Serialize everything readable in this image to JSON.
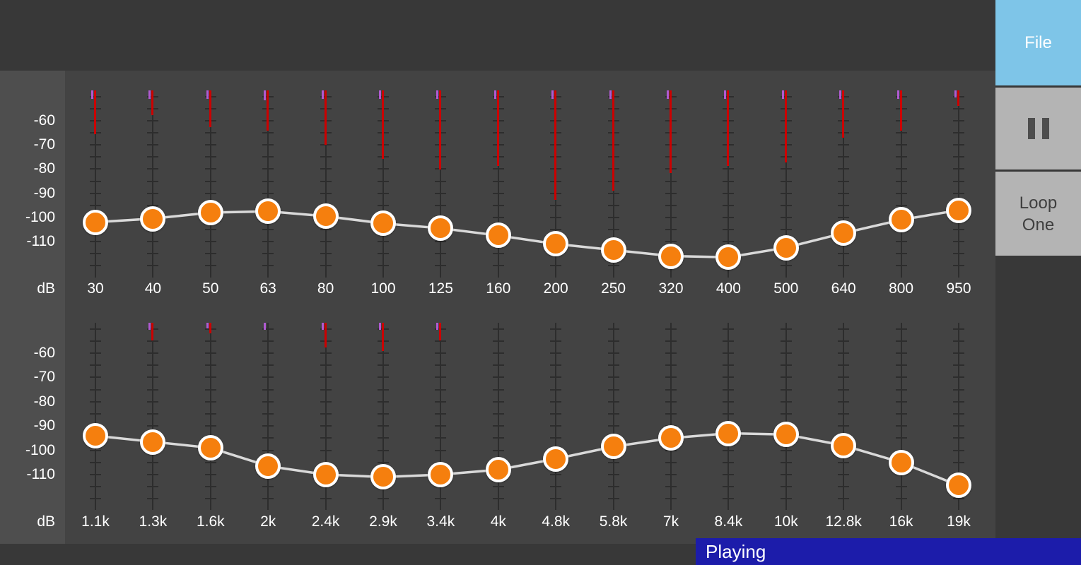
{
  "colors": {
    "background": "#383838",
    "chart_bg": "#434343",
    "left_strip": "#4e4e4e",
    "knob": "#f57f0e",
    "knob_border": "#ffffff",
    "curve": "#d9d9d9",
    "meter_red": "#cc0000",
    "meter_purple": "#b05ad2",
    "file_button_bg": "#7ec5e8",
    "gray_button_bg": "#b4b4b4",
    "playing_bg": "#1c1caa",
    "label_text": "#ffffff"
  },
  "right_panel": {
    "file_button": "File",
    "pause_icon": "pause-icon",
    "loop_button_line1": "Loop",
    "loop_button_line2": "One"
  },
  "status_bar": {
    "text": "Playing"
  },
  "chart_data": {
    "type": "equalizer-sliders",
    "unit": "dB",
    "scale_ticks": [
      -60,
      -70,
      -80,
      -90,
      -100,
      -110
    ],
    "db_axis_visible_range": [
      -60,
      -110
    ],
    "rows": [
      {
        "name": "low-bands",
        "bands": [
          {
            "freq": "30",
            "db": -102,
            "meter": {
              "red": 62,
              "purple": 12
            }
          },
          {
            "freq": "40",
            "db": -100.5,
            "meter": {
              "red": 35,
              "purple": 12
            }
          },
          {
            "freq": "50",
            "db": -98,
            "meter": {
              "red": 52,
              "purple": 12
            }
          },
          {
            "freq": "63",
            "db": -97.5,
            "meter": {
              "red": 57,
              "purple": 14
            }
          },
          {
            "freq": "80",
            "db": -99.5,
            "meter": {
              "red": 77,
              "purple": 12
            }
          },
          {
            "freq": "100",
            "db": -102.5,
            "meter": {
              "red": 97,
              "purple": 12
            }
          },
          {
            "freq": "125",
            "db": -104.5,
            "meter": {
              "red": 112,
              "purple": 12
            }
          },
          {
            "freq": "160",
            "db": -107.5,
            "meter": {
              "red": 107,
              "purple": 12
            }
          },
          {
            "freq": "200",
            "db": -111,
            "meter": {
              "red": 155,
              "purple": 12
            }
          },
          {
            "freq": "250",
            "db": -113.5,
            "meter": {
              "red": 142,
              "purple": 12
            }
          },
          {
            "freq": "320",
            "db": -116,
            "meter": {
              "red": 117,
              "purple": 12
            }
          },
          {
            "freq": "400",
            "db": -116.5,
            "meter": {
              "red": 107,
              "purple": 12
            }
          },
          {
            "freq": "500",
            "db": -112.5,
            "meter": {
              "red": 102,
              "purple": 12
            }
          },
          {
            "freq": "640",
            "db": -106.5,
            "meter": {
              "red": 67,
              "purple": 12
            }
          },
          {
            "freq": "800",
            "db": -101,
            "meter": {
              "red": 57,
              "purple": 12
            }
          },
          {
            "freq": "950",
            "db": -97,
            "meter": {
              "red": 22,
              "purple": 10
            }
          }
        ]
      },
      {
        "name": "high-bands",
        "bands": [
          {
            "freq": "1.1k",
            "db": -94,
            "meter": {
              "red": 0,
              "purple": 0
            }
          },
          {
            "freq": "1.3k",
            "db": -96.5,
            "meter": {
              "red": 25,
              "purple": 10
            }
          },
          {
            "freq": "1.6k",
            "db": -99,
            "meter": {
              "red": 15,
              "purple": 8
            }
          },
          {
            "freq": "2k",
            "db": -106.5,
            "meter": {
              "red": 0,
              "purple": 10
            }
          },
          {
            "freq": "2.4k",
            "db": -110,
            "meter": {
              "red": 35,
              "purple": 10
            }
          },
          {
            "freq": "2.9k",
            "db": -111,
            "meter": {
              "red": 40,
              "purple": 10
            }
          },
          {
            "freq": "3.4k",
            "db": -110,
            "meter": {
              "red": 25,
              "purple": 10
            }
          },
          {
            "freq": "4k",
            "db": -108,
            "meter": {
              "red": 0,
              "purple": 0
            }
          },
          {
            "freq": "4.8k",
            "db": -103.5,
            "meter": {
              "red": 0,
              "purple": 0
            }
          },
          {
            "freq": "5.8k",
            "db": -98.5,
            "meter": {
              "red": 0,
              "purple": 0
            }
          },
          {
            "freq": "7k",
            "db": -95,
            "meter": {
              "red": 0,
              "purple": 0
            }
          },
          {
            "freq": "8.4k",
            "db": -93,
            "meter": {
              "red": 0,
              "purple": 0
            }
          },
          {
            "freq": "10k",
            "db": -93.5,
            "meter": {
              "red": 0,
              "purple": 0
            }
          },
          {
            "freq": "12.8k",
            "db": -98,
            "meter": {
              "red": 0,
              "purple": 0
            }
          },
          {
            "freq": "16k",
            "db": -105,
            "meter": {
              "red": 0,
              "purple": 0
            }
          },
          {
            "freq": "19k",
            "db": -114.5,
            "meter": {
              "red": 0,
              "purple": 0
            }
          }
        ]
      }
    ]
  }
}
